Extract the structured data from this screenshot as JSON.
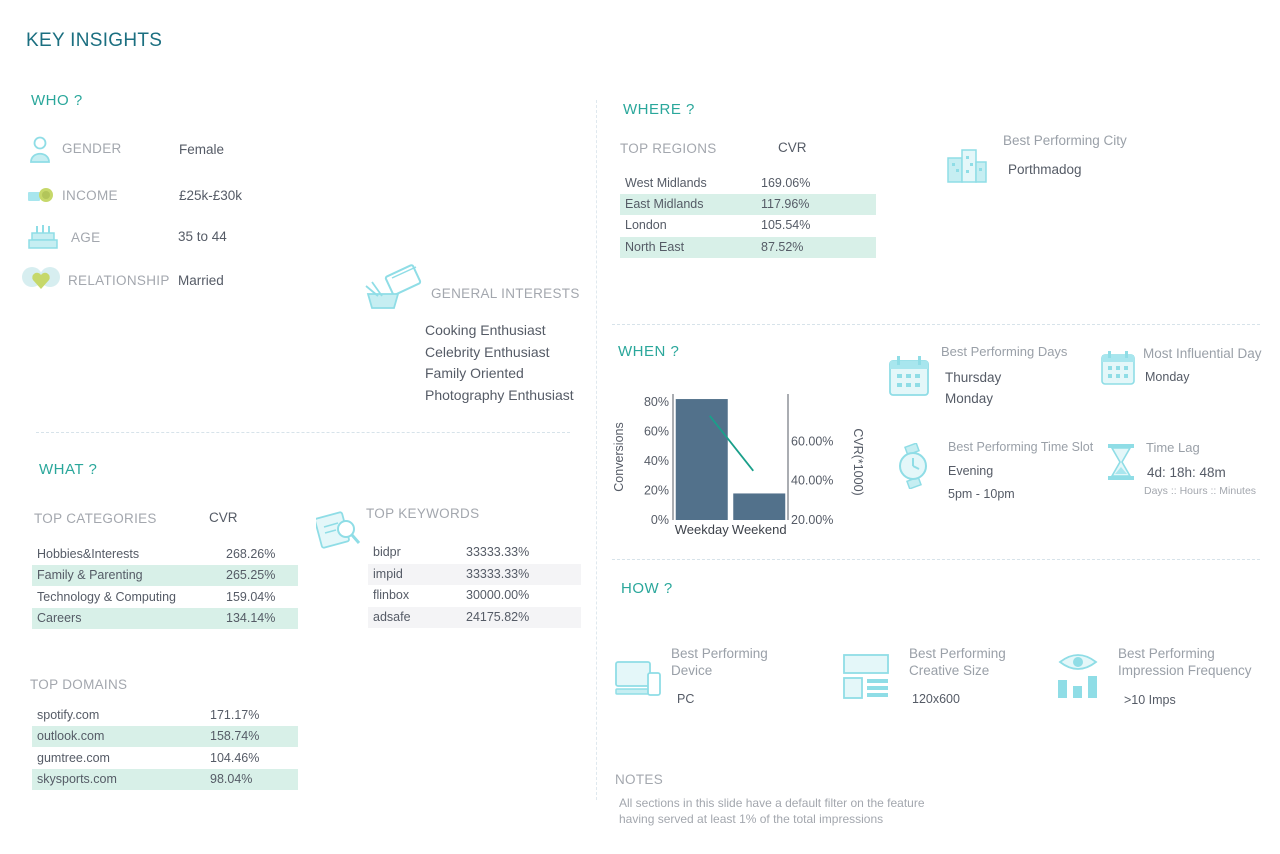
{
  "title": "KEY INSIGHTS",
  "who": {
    "heading": "WHO ?",
    "fields": [
      {
        "label": "GENDER",
        "value": "Female",
        "icon": "person-icon"
      },
      {
        "label": "INCOME",
        "value": "£25k-£30k",
        "icon": "money-icon"
      },
      {
        "label": "AGE",
        "value": "35 to 44",
        "icon": "birthday-cake-icon"
      },
      {
        "label": "RELATIONSHIP",
        "value": "Married",
        "icon": "couple-heart-icon"
      }
    ],
    "interests_label": "GENERAL INTERESTS",
    "interests": [
      "Cooking Enthusiast",
      "Celebrity Enthusiast",
      "Family Oriented",
      "Photography Enthusiast"
    ]
  },
  "what": {
    "heading": "WHAT ?",
    "categories_label": "TOP CATEGORIES",
    "categories_metric": "CVR",
    "categories": [
      {
        "name": "Hobbies&Interests",
        "cvr": "268.26%"
      },
      {
        "name": "Family & Parenting",
        "cvr": "265.25%"
      },
      {
        "name": "Technology & Computing",
        "cvr": "159.04%"
      },
      {
        "name": "Careers",
        "cvr": "134.14%"
      }
    ],
    "keywords_label": "TOP KEYWORDS",
    "keywords": [
      {
        "name": "bidpr",
        "cvr": "33333.33%"
      },
      {
        "name": "impid",
        "cvr": "33333.33%"
      },
      {
        "name": "flinbox",
        "cvr": "30000.00%"
      },
      {
        "name": "adsafe",
        "cvr": "24175.82%"
      }
    ],
    "domains_label": "TOP DOMAINS",
    "domains": [
      {
        "name": "spotify.com",
        "cvr": "171.17%"
      },
      {
        "name": "outlook.com",
        "cvr": "158.74%"
      },
      {
        "name": "gumtree.com",
        "cvr": "104.46%"
      },
      {
        "name": "skysports.com",
        "cvr": "98.04%"
      }
    ]
  },
  "where": {
    "heading": "WHERE ?",
    "regions_label": "TOP REGIONS",
    "regions_metric": "CVR",
    "regions": [
      {
        "name": "West Midlands",
        "cvr": "169.06%"
      },
      {
        "name": "East Midlands",
        "cvr": "117.96%"
      },
      {
        "name": "London",
        "cvr": "105.54%"
      },
      {
        "name": "North East",
        "cvr": "87.52%"
      }
    ],
    "city_label": "Best Performing City",
    "city": "Porthmadog"
  },
  "when": {
    "heading": "WHEN ?",
    "days_label": "Best Performing Days",
    "days": [
      "Thursday",
      "Monday"
    ],
    "influential_label": "Most Influential Day",
    "influential": "Monday",
    "timeslot_label": "Best Performing Time Slot",
    "timeslot_name": "Evening",
    "timeslot_range": "5pm - 10pm",
    "lag_label": "Time Lag",
    "lag_value": "4d: 18h: 48m",
    "lag_units": "Days :: Hours :: Minutes"
  },
  "chart_data": {
    "type": "bar",
    "categories": [
      "Weekday",
      "Weekend"
    ],
    "series": [
      {
        "name": "Conversions",
        "type": "bar",
        "axis": "left",
        "values": [
          82,
          18
        ]
      },
      {
        "name": "CVR(*1000)",
        "type": "line",
        "axis": "right",
        "values": [
          73,
          45
        ]
      }
    ],
    "ylabel": "Conversions",
    "ylabel_right": "CVR(*1000)",
    "ylim": [
      0,
      80
    ],
    "ylim_right": [
      20,
      80
    ],
    "yticks": [
      "0%",
      "20%",
      "40%",
      "60%",
      "80%"
    ],
    "yticks_right": [
      "20.00%",
      "40.00%",
      "60.00%"
    ],
    "colors": {
      "bar": "#52718b",
      "line": "#1a9f8a"
    }
  },
  "how": {
    "heading": "HOW ?",
    "device_label_1": "Best Performing",
    "device_label_2": "Device",
    "device": "PC",
    "size_label_1": "Best Performing",
    "size_label_2": "Creative Size",
    "size": "120x600",
    "freq_label_1": "Best Performing",
    "freq_label_2": "Impression Frequency",
    "freq": ">10 Imps"
  },
  "notes": {
    "label": "NOTES",
    "line1": "All sections in this slide have a default filter on the feature",
    "line2": "having served at least 1% of the total impressions"
  },
  "colors": {
    "accent": "#2aa79b",
    "title": "#1b6f80",
    "icon": "#8fdde6",
    "highlight": "#d8f0e8"
  }
}
